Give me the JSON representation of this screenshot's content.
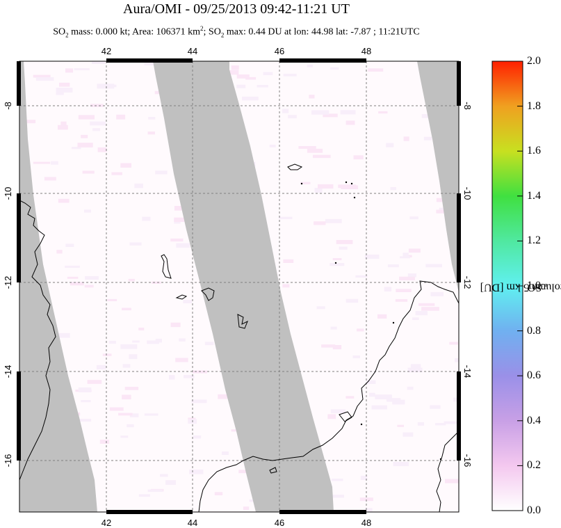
{
  "title": "Aura/OMI - 09/25/2013 09:42-11:21 UT",
  "subtitle": {
    "p1": "SO",
    "p1_sub": "2",
    "p2": " mass: 0.000 kt; Area: 106371 km",
    "p2_sup": "2",
    "p3": "; SO",
    "p3_sub": "2",
    "p4": " max: 0.44 DU at lon: 44.98 lat: -7.87 ; 11:21UTC"
  },
  "map": {
    "lon_range": [
      40,
      50
    ],
    "lat_range": [
      -17.4,
      -7.1
    ],
    "lon_ticks": [
      "42",
      "44",
      "46",
      "48"
    ],
    "lat_ticks": [
      "-8",
      "-10",
      "-12",
      "-14",
      "-16"
    ],
    "colors": {
      "no_data": "#c0c0c0",
      "frame": "#000000",
      "coast": "#000000",
      "grid": "#808080"
    }
  },
  "colorbar": {
    "title_a": "SO",
    "title_sub": "2",
    "title_b": " PCA column 5 km [DU]",
    "labels": [
      "2.0",
      "1.8",
      "1.6",
      "1.4",
      "1.2",
      "1.0",
      "0.8",
      "0.6",
      "0.4",
      "0.2",
      "0.0"
    ],
    "range": [
      0.0,
      2.0
    ]
  }
}
